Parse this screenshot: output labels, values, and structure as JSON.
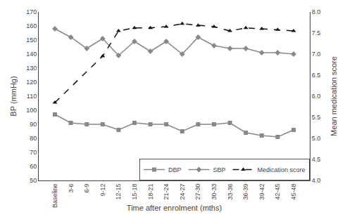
{
  "chart_data": {
    "type": "line",
    "x_label": "Time after enrolment (mths)",
    "y_label": "BP (mmHg)",
    "y2_label": "Mean medication score",
    "categories": [
      "Baseline",
      "3-6",
      "6-9",
      "9-12",
      "12-15",
      "15-18",
      "18-21",
      "21-24",
      "24-27",
      "27-30",
      "30-33",
      "33-36",
      "36-39",
      "39-42",
      "42-45",
      "45-48"
    ],
    "series": [
      {
        "name": "DBP",
        "color": "#888888",
        "marker": "square",
        "line_style": "solid",
        "values": [
          97,
          91,
          90,
          90,
          86,
          91,
          90,
          90,
          85,
          90,
          90,
          91,
          84,
          82,
          81,
          86
        ]
      },
      {
        "name": "SBP",
        "color": "#888888",
        "marker": "diamond",
        "line_style": "solid",
        "values": [
          158,
          152,
          144,
          151,
          139,
          149,
          142,
          149,
          140,
          152,
          146,
          144,
          144,
          141,
          141,
          140
        ]
      },
      {
        "name": "Medication score",
        "color": "#111111",
        "marker": "triangle-up",
        "line_style": "dashed",
        "axis": "y2",
        "values": [
          5.85,
          null,
          null,
          6.95,
          7.55,
          7.62,
          7.62,
          7.65,
          7.72,
          7.68,
          7.65,
          7.55,
          7.62,
          7.6,
          7.58,
          7.55
        ]
      }
    ],
    "ylim": [
      50,
      170
    ],
    "yticks": [
      50,
      60,
      70,
      80,
      90,
      100,
      110,
      120,
      130,
      140,
      150,
      160,
      170
    ],
    "y2lim": [
      4,
      8
    ],
    "y2ticks": [
      {
        "value": 4,
        "label": "4.0"
      },
      4.5,
      {
        "value": 5,
        "label": "5.0"
      },
      5.5,
      {
        "value": 6,
        "label": "6.0"
      },
      6.5,
      {
        "value": 7,
        "label": "7.0"
      },
      7.5,
      {
        "value": 8,
        "label": "8.0"
      }
    ],
    "grid": false,
    "legend": "lower right"
  }
}
